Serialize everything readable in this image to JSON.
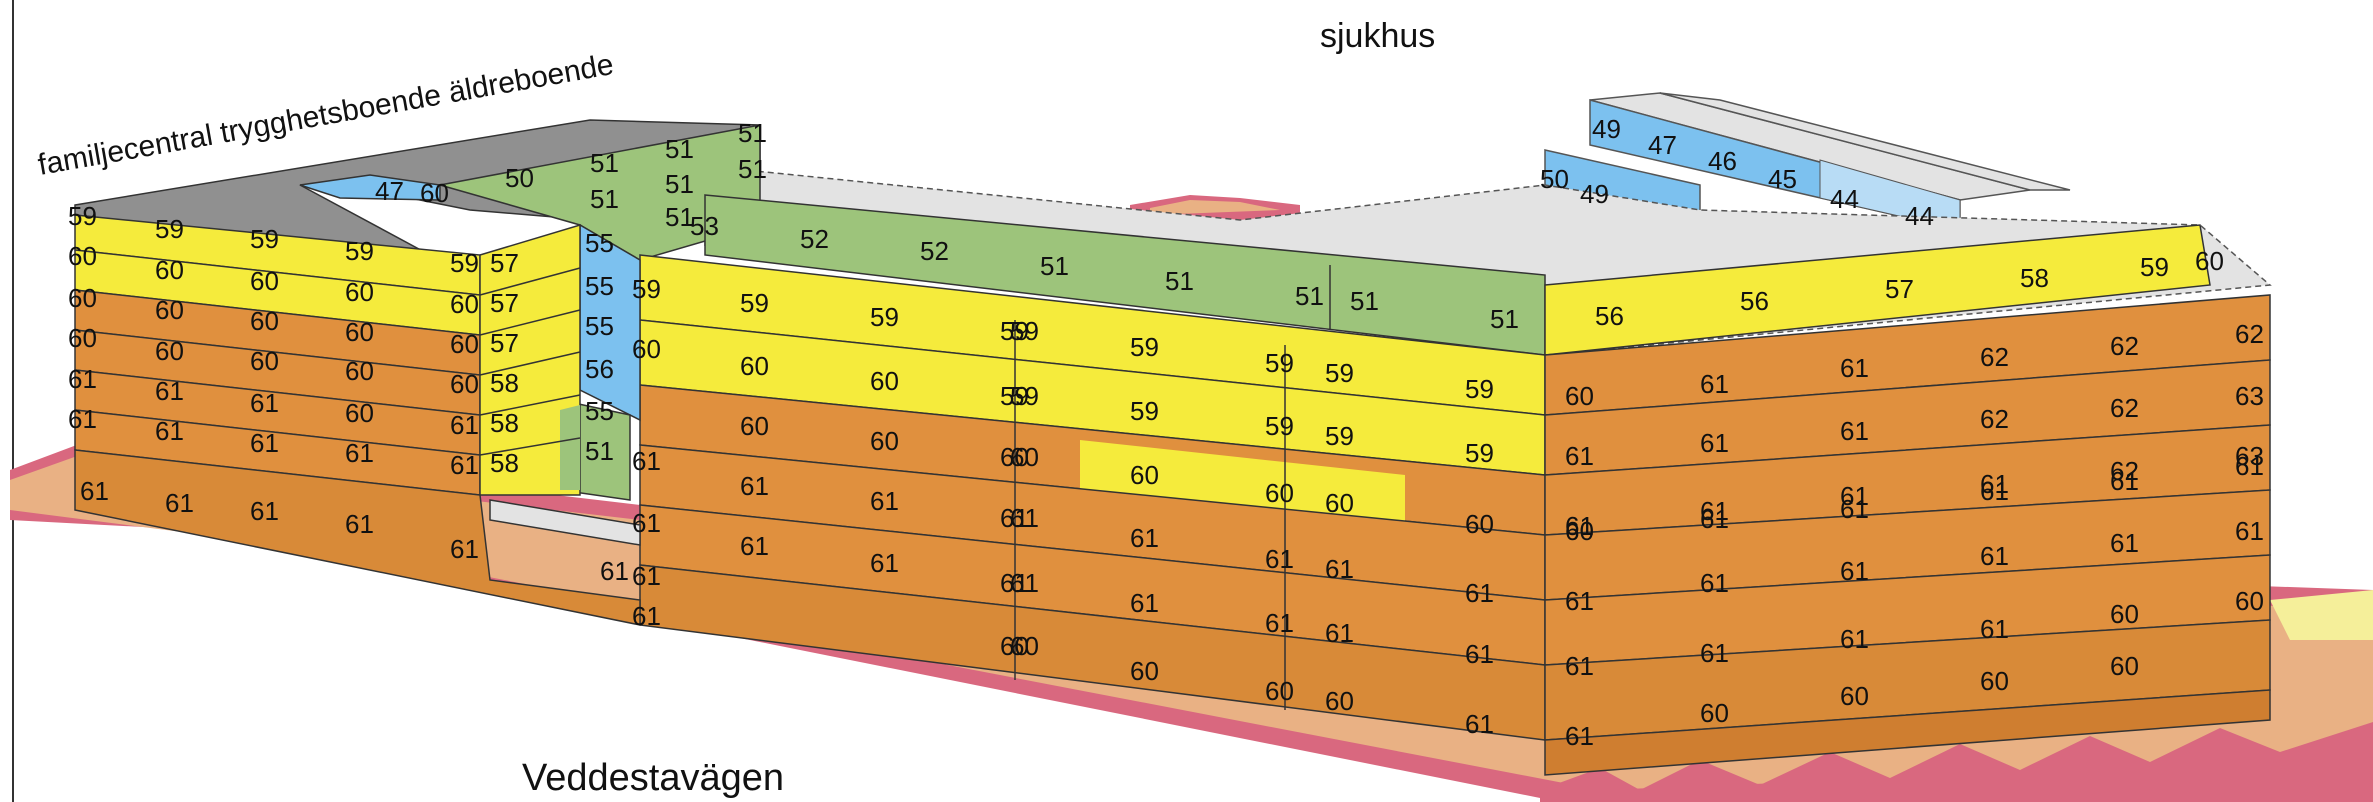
{
  "labels": {
    "top": "sjukhus",
    "bottom": "Veddestavägen",
    "wing_left": "familjecentral trygghetsboende äldreboende"
  },
  "colors": {
    "band_orange": "#e0903e",
    "band_orange_dark": "#cf7e30",
    "band_yellow": "#f5eb3c",
    "band_green": "#9dc47b",
    "band_blue": "#7cc1ef",
    "band_lightblue": "#b8dcf5",
    "roof_gray": "#909090",
    "roof_light": "#e3e3e3",
    "ground_pink": "#d9687f",
    "ground_peach": "#e9b184",
    "ground_pale_yellow": "#f5ef9a"
  },
  "values": {
    "left_wing_end": [
      "59",
      "60",
      "60",
      "60",
      "61",
      "61",
      "61"
    ],
    "left_wing_row1": [
      "59",
      "59",
      "59",
      "59"
    ],
    "left_wing_row2": [
      "60",
      "60",
      "60",
      "60"
    ],
    "left_wing_row3": [
      "60",
      "60",
      "60",
      "60"
    ],
    "left_wing_row4": [
      "60",
      "60",
      "60",
      "60"
    ],
    "left_wing_row5": [
      "61",
      "61",
      "60",
      "61"
    ],
    "left_wing_row6": [
      "61",
      "61",
      "61",
      "61"
    ],
    "left_wing_row7": [
      "61",
      "61",
      "61",
      "61",
      "61"
    ],
    "left_wing_court": [
      "57",
      "57",
      "57",
      "58",
      "58",
      "58"
    ],
    "left_wing_inner": [
      "55",
      "55",
      "55",
      "56",
      "55",
      "51"
    ],
    "left_wing_roof": [
      "50",
      "51",
      "51",
      "51",
      "51",
      "51",
      "51",
      "51",
      "53",
      "47",
      "60"
    ],
    "main_top_green": [
      "52",
      "52",
      "51",
      "51",
      "51",
      "51",
      "51"
    ],
    "main_top_yellow": [
      "56",
      "56",
      "57",
      "58",
      "59",
      "60"
    ],
    "main_row1": [
      "59",
      "59",
      "59",
      "59",
      "59",
      "59",
      "59",
      "59"
    ],
    "main_row2": [
      "60",
      "60",
      "59",
      "59",
      "59",
      "59",
      "59",
      "59"
    ],
    "main_row3": [
      "60",
      "60",
      "60",
      "60",
      "60",
      "60",
      "60",
      "60"
    ],
    "main_row4": [
      "61",
      "61",
      "61",
      "61",
      "61",
      "61",
      "61",
      "61"
    ],
    "main_row5": [
      "61",
      "61",
      "61",
      "61",
      "61",
      "61",
      "61",
      "61"
    ],
    "main_row6": [
      "60",
      "60",
      "60",
      "60",
      "60",
      "61"
    ],
    "right_row1": [
      "60",
      "61",
      "61",
      "62",
      "62",
      "62"
    ],
    "right_row2": [
      "61",
      "61",
      "61",
      "62",
      "62",
      "63"
    ],
    "right_row3": [
      "61",
      "61",
      "61",
      "61",
      "62",
      "63"
    ],
    "right_row4": [
      "60",
      "61",
      "61",
      "61",
      "61",
      "61"
    ],
    "right_row5": [
      "61",
      "61",
      "61",
      "61",
      "61",
      "61"
    ],
    "right_row6": [
      "61",
      "61",
      "61",
      "61",
      "60",
      "60"
    ],
    "right_row7": [
      "61",
      "60",
      "60",
      "60",
      "60"
    ],
    "back_wing": [
      "49",
      "47",
      "46",
      "45",
      "44",
      "44",
      "50",
      "49"
    ],
    "court_side": [
      "59",
      "60",
      "61",
      "61",
      "61",
      "61"
    ]
  }
}
